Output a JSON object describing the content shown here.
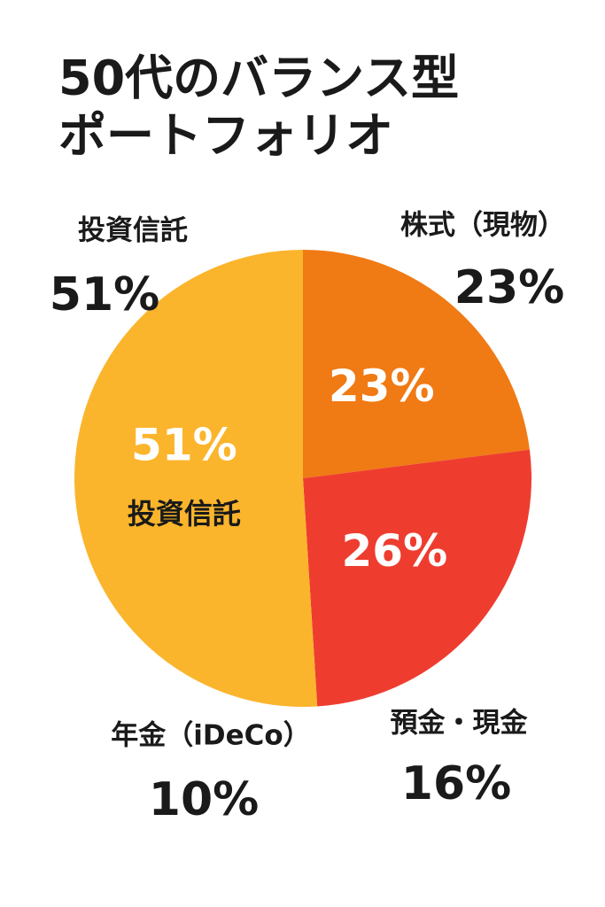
{
  "chart_data": {
    "type": "pie",
    "title": [
      "50代のバランス型",
      "ポートフォリオ"
    ],
    "categories": [
      null,
      null,
      "投資信託"
    ],
    "values": [
      23,
      26,
      51
    ],
    "value_labels": [
      "23%",
      "26%",
      "51%"
    ],
    "colors": [
      "#f07a14",
      "#ee3d2f",
      "#fbb52c"
    ],
    "annotations": [
      {
        "text": "投資信託",
        "value": 51,
        "value_label": "51%"
      },
      {
        "text": "株式（現物）",
        "value": 23,
        "value_label": "23%"
      },
      {
        "text": "預金・現金",
        "value": 16,
        "value_label": "16%"
      },
      {
        "text": "年金（iDeCo）",
        "value": 10,
        "value_label": "10%"
      }
    ]
  }
}
